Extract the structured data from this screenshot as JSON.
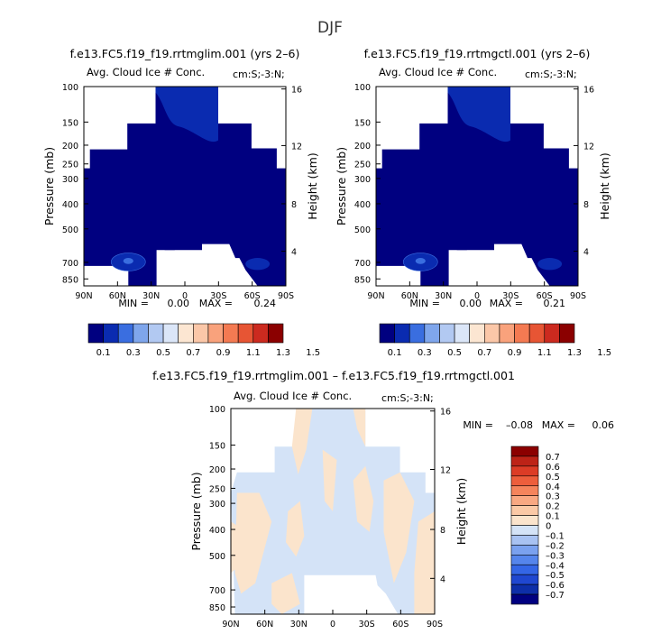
{
  "page_title": "DJF",
  "colors": {
    "ice_bar": [
      "#000080",
      "#0a2bb0",
      "#3a6ee0",
      "#7fa6ec",
      "#b2c9f2",
      "#dbe6f8",
      "#fce6d2",
      "#fbc7a8",
      "#f9a27c",
      "#f47a52",
      "#e75534",
      "#cc2a1f",
      "#8b0000"
    ],
    "diff_bar": [
      "#000080",
      "#0d2ea8",
      "#1f47d0",
      "#3466e6",
      "#5585ec",
      "#7aa1ef",
      "#a8c2f2",
      "#d4e3f7",
      "#fbe4cc",
      "#fbc9a6",
      "#f9a882",
      "#f5845c",
      "#ed5e3c",
      "#dc3c26",
      "#bd2317",
      "#8b0000"
    ],
    "diff_pos": "#fbe4cc",
    "diff_neg": "#d4e3f7"
  },
  "chart_data": [
    {
      "type": "heatmap",
      "title": "f.e13.FC5.f19_f19.rrtmglim.001 (yrs 2–6)",
      "subtitle": "Avg. Cloud Ice # Conc.",
      "units": "cm:S;-3:N;",
      "xlabel": "",
      "ylabel": "Pressure (mb)",
      "y2label": "Height (km)",
      "xticks": [
        "90N",
        "60N",
        "30N",
        "0",
        "30S",
        "60S",
        "90S"
      ],
      "yticks": [
        100,
        150,
        200,
        250,
        300,
        400,
        500,
        700,
        850
      ],
      "y2ticks": [
        16,
        12,
        8,
        4
      ],
      "stats": {
        "min_label": "MIN =",
        "min": "0.00",
        "max_label": "MAX =",
        "max": "0.24"
      },
      "colorbar_labels": [
        "0.1",
        "0.3",
        "0.5",
        "0.7",
        "0.9",
        "1.1",
        "1.3",
        "1.5"
      ]
    },
    {
      "type": "heatmap",
      "title": "f.e13.FC5.f19_f19.rrtmgctl.001 (yrs 2–6)",
      "subtitle": "Avg. Cloud Ice # Conc.",
      "units": "cm:S;-3:N;",
      "xlabel": "",
      "ylabel": "Pressure (mb)",
      "y2label": "Height (km)",
      "xticks": [
        "90N",
        "60N",
        "30N",
        "0",
        "30S",
        "60S",
        "90S"
      ],
      "yticks": [
        100,
        150,
        200,
        250,
        300,
        400,
        500,
        700,
        850
      ],
      "y2ticks": [
        16,
        12,
        8,
        4
      ],
      "stats": {
        "min_label": "MIN =",
        "min": "0.00",
        "max_label": "MAX =",
        "max": "0.21"
      },
      "colorbar_labels": [
        "0.1",
        "0.3",
        "0.5",
        "0.7",
        "0.9",
        "1.1",
        "1.3",
        "1.5"
      ]
    },
    {
      "type": "heatmap",
      "title": "f.e13.FC5.f19_f19.rrtmglim.001 – f.e13.FC5.f19_f19.rrtmgctl.001",
      "subtitle": "Avg. Cloud Ice # Conc.",
      "units": "cm:S;-3:N;",
      "xlabel": "",
      "ylabel": "Pressure (mb)",
      "y2label": "Height (km)",
      "xticks": [
        "90N",
        "60N",
        "30N",
        "0",
        "30S",
        "60S",
        "90S"
      ],
      "yticks": [
        100,
        150,
        200,
        250,
        300,
        400,
        500,
        700,
        850
      ],
      "y2ticks": [
        16,
        12,
        8,
        4
      ],
      "stats": {
        "min_label": "MIN =",
        "min": "–0.08",
        "max_label": "MAX =",
        "max": "0.06"
      },
      "colorbar_labels": [
        "0.7",
        "0.6",
        "0.5",
        "0.4",
        "0.3",
        "0.2",
        "0.1",
        "0",
        "–0.1",
        "–0.2",
        "–0.3",
        "–0.4",
        "–0.5",
        "–0.6",
        "–0.7"
      ]
    }
  ]
}
